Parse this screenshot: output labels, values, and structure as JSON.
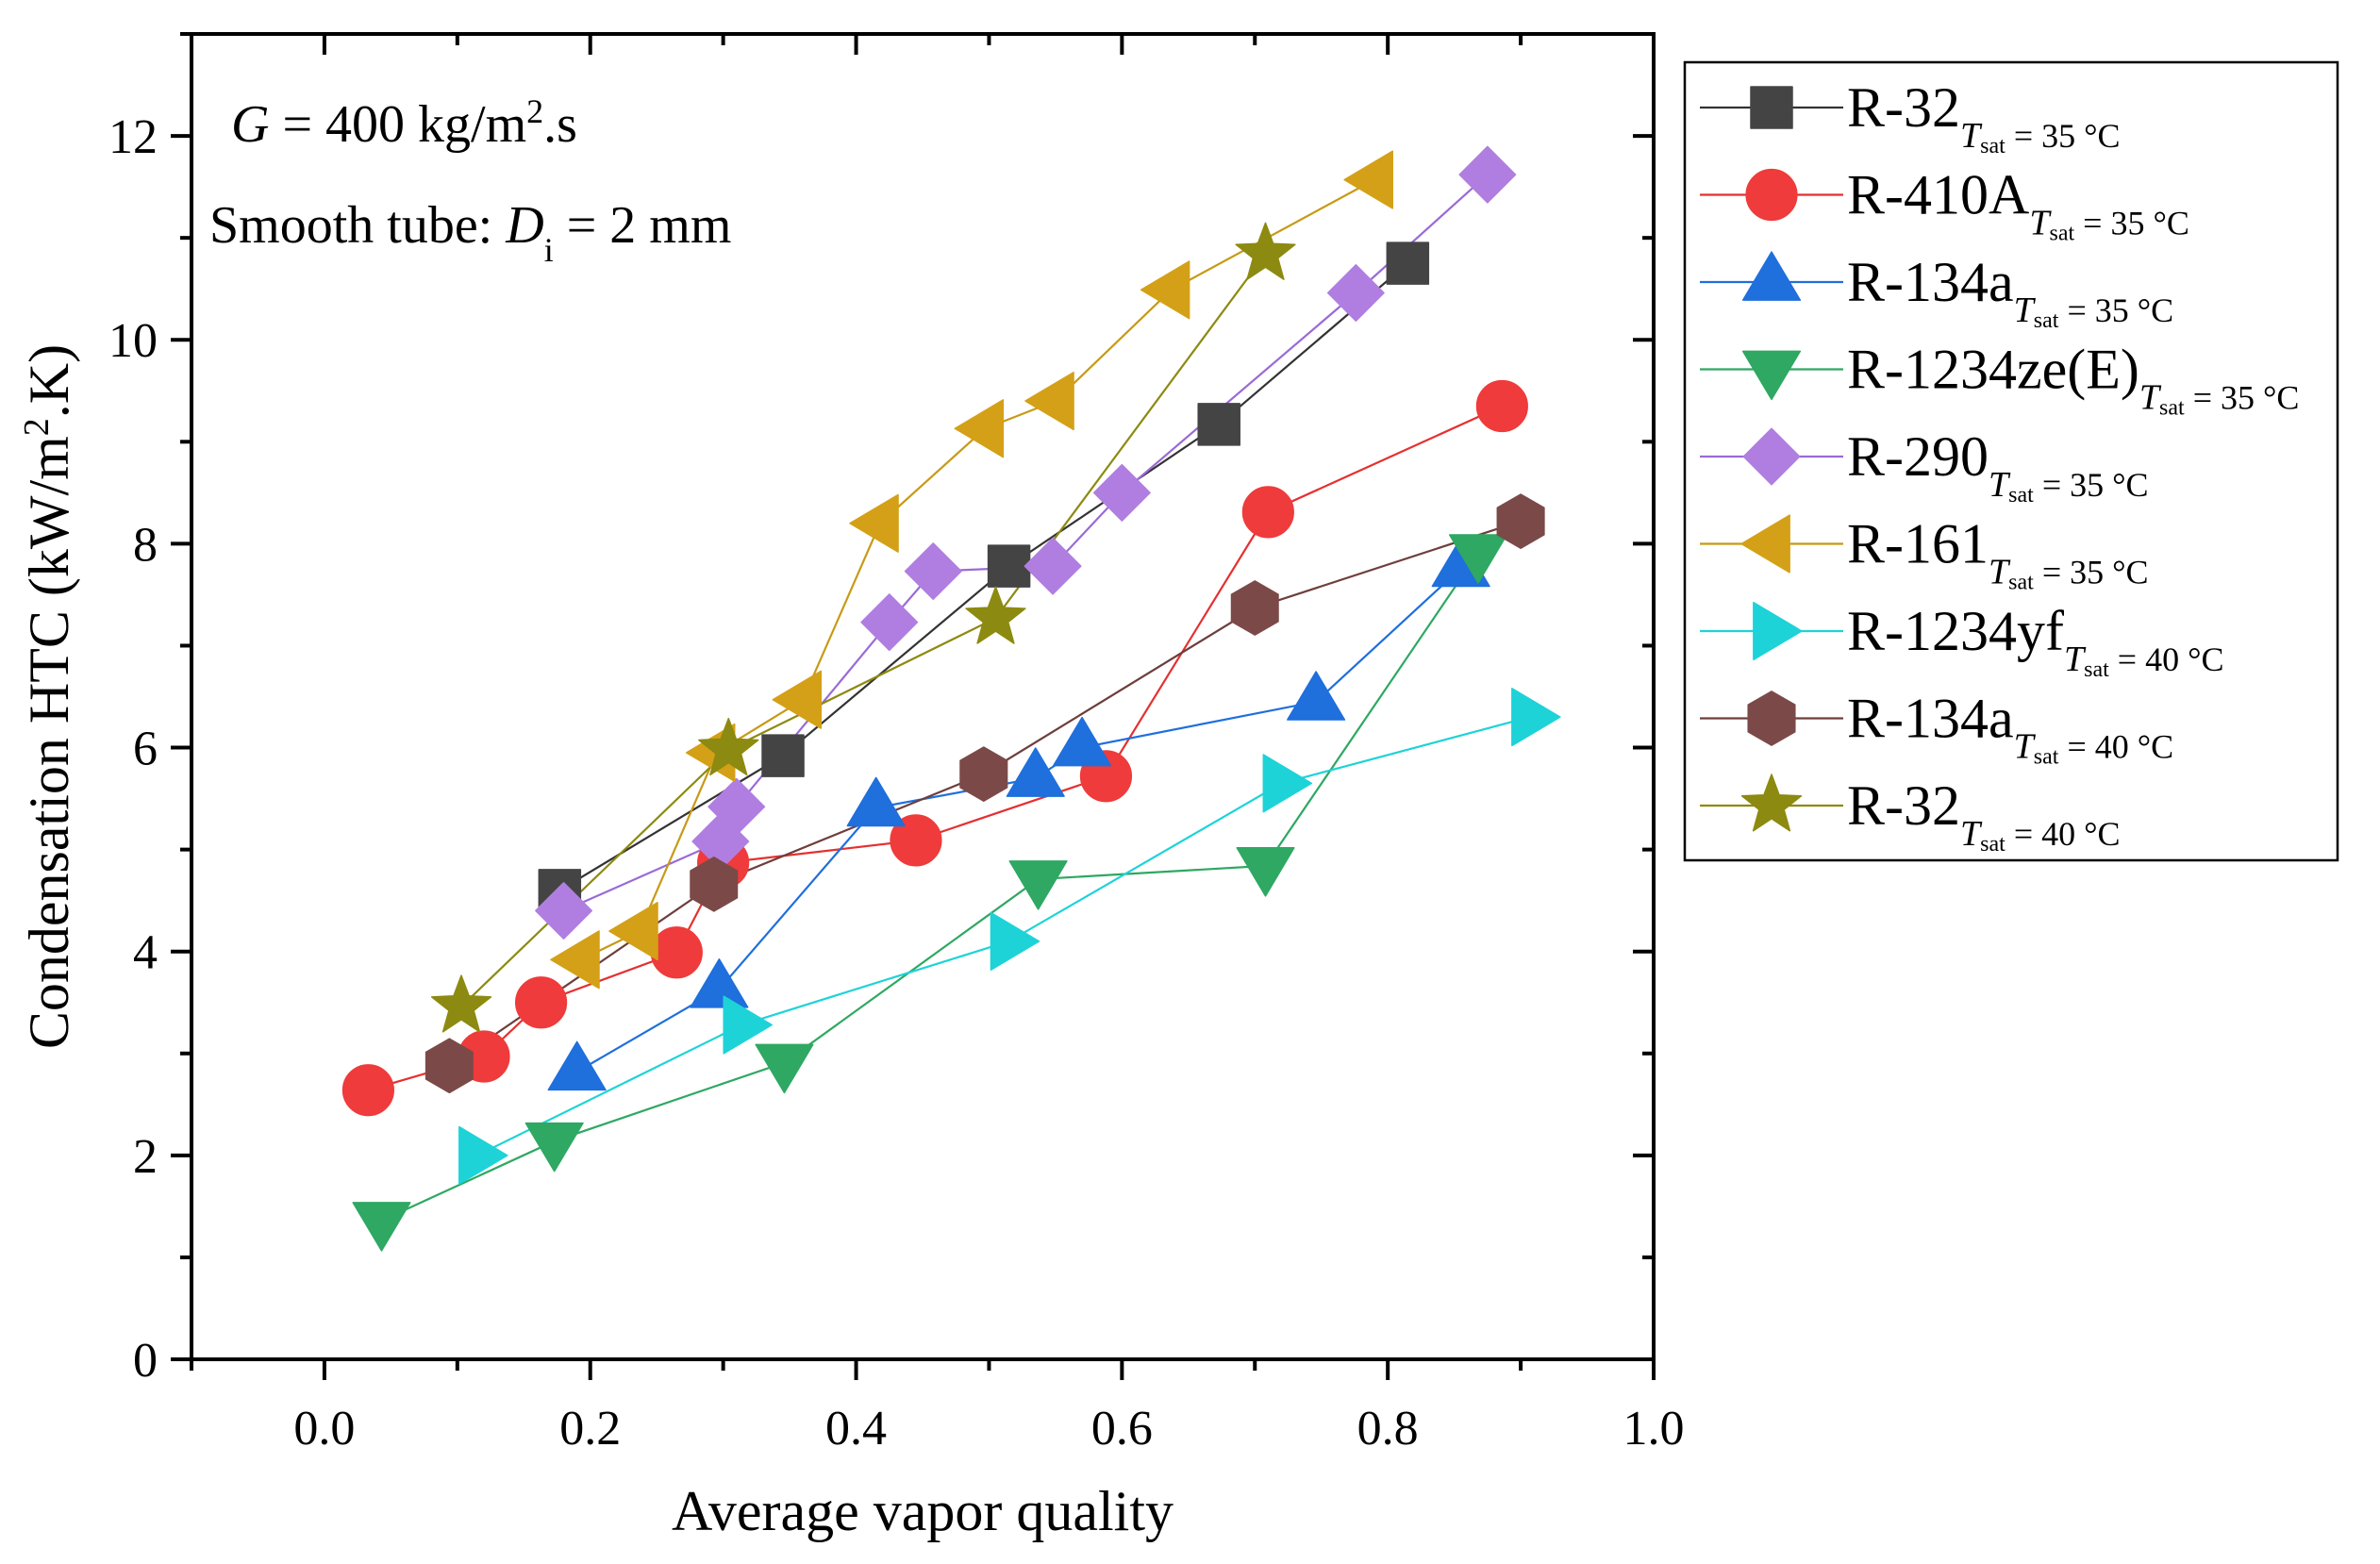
{
  "chart_data": {
    "type": "line",
    "xlabel": "Average vapor quality",
    "ylabel": "Condensation HTC (kW/m².K)",
    "xlim": [
      -0.1,
      1.0
    ],
    "ylim": [
      0,
      13
    ],
    "xticks": [
      0.0,
      0.2,
      0.4,
      0.6,
      0.8,
      1.0
    ],
    "xtick_labels": [
      "0.0",
      "0.2",
      "0.4",
      "0.6",
      "0.8",
      "1.0"
    ],
    "yticks": [
      0,
      2,
      4,
      6,
      8,
      10,
      12
    ],
    "ytick_labels": [
      "0",
      "2",
      "4",
      "6",
      "8",
      "10",
      "12"
    ],
    "grid": false,
    "legend_position": "outside-right",
    "annotations": [
      {
        "prefix": "G",
        "text": " = 400 kg/m",
        "sup": "2",
        "suffix": ".s"
      },
      {
        "prefix": "Smooth tube: ",
        "var": "D",
        "sub": "i",
        "suffix": " = 2 mm"
      }
    ],
    "series": [
      {
        "name": "R-32",
        "subscript": "T",
        "subscript_rest": "sat",
        "condition": " = 35 °C",
        "marker": "square",
        "color": "#444444",
        "line_color": "#333333",
        "x": [
          0.177,
          0.345,
          0.515,
          0.673,
          0.815
        ],
        "y": [
          4.6,
          5.92,
          7.78,
          9.17,
          10.75
        ]
      },
      {
        "name": "R-410A",
        "subscript": "T",
        "subscript_rest": "sat",
        "condition": " = 35 °C",
        "marker": "circle",
        "color": "#ef3b3b",
        "line_color": "#e53030",
        "x": [
          0.033,
          0.12,
          0.163,
          0.265,
          0.3,
          0.445,
          0.588,
          0.71,
          0.886
        ],
        "y": [
          2.64,
          2.97,
          3.5,
          3.99,
          4.87,
          5.09,
          5.72,
          8.31,
          9.35
        ]
      },
      {
        "name": "R-134a",
        "subscript": "T",
        "subscript_rest": "sat",
        "condition": " = 35 °C",
        "marker": "triangle-up",
        "color": "#1f6fdc",
        "line_color": "#1f6fdc",
        "x": [
          0.19,
          0.297,
          0.415,
          0.535,
          0.57,
          0.746,
          0.855
        ],
        "y": [
          2.82,
          3.63,
          5.41,
          5.7,
          6.0,
          6.45,
          7.76
        ]
      },
      {
        "name": "R-1234ze(E)",
        "subscript": "T",
        "subscript_rest": "sat",
        "condition": " = 35 °C",
        "marker": "triangle-down",
        "color": "#2ea862",
        "line_color": "#2ea862",
        "x": [
          0.043,
          0.173,
          0.346,
          0.537,
          0.708,
          0.868
        ],
        "y": [
          1.36,
          2.14,
          2.91,
          4.71,
          4.84,
          7.91
        ]
      },
      {
        "name": "R-290",
        "subscript": "T",
        "subscript_rest": "sat",
        "condition": " = 35 °C",
        "marker": "diamond",
        "color": "#b07ee0",
        "line_color": "#9a6ad6",
        "x": [
          0.18,
          0.298,
          0.31,
          0.425,
          0.458,
          0.548,
          0.6,
          0.776,
          0.875
        ],
        "y": [
          4.4,
          5.08,
          5.42,
          7.23,
          7.73,
          7.78,
          8.5,
          10.46,
          11.62
        ]
      },
      {
        "name": "R-161",
        "subscript": "T",
        "subscript_rest": "sat",
        "condition": " = 35 °C",
        "marker": "triangle-left",
        "color": "#d4a017",
        "line_color": "#c79a16",
        "x": [
          0.193,
          0.237,
          0.295,
          0.36,
          0.418,
          0.497,
          0.55,
          0.637,
          0.79
        ],
        "y": [
          3.92,
          4.2,
          5.95,
          6.47,
          8.2,
          9.13,
          9.4,
          10.49,
          11.57
        ]
      },
      {
        "name": "R-1234yf",
        "subscript": "T",
        "subscript_rest": "sat",
        "condition": " = 40 °C",
        "marker": "triangle-right",
        "color": "#1dd3d8",
        "line_color": "#1dd3d8",
        "x": [
          0.115,
          0.314,
          0.515,
          0.72,
          0.907
        ],
        "y": [
          2.0,
          3.28,
          4.1,
          5.65,
          6.3
        ]
      },
      {
        "name": "R-134a",
        "subscript": "T",
        "subscript_rest": "sat",
        "condition": " = 40 °C",
        "marker": "hexagon",
        "color": "#7b4a48",
        "line_color": "#6e3e3c",
        "x": [
          0.094,
          0.293,
          0.496,
          0.7,
          0.9
        ],
        "y": [
          2.88,
          4.66,
          5.74,
          7.37,
          8.22
        ]
      },
      {
        "name": "R-32",
        "subscript": "T",
        "subscript_rest": "sat",
        "condition": " = 40 °C",
        "marker": "star",
        "color": "#8c8a10",
        "line_color": "#8c8a10",
        "x": [
          0.103,
          0.304,
          0.505,
          0.708
        ],
        "y": [
          3.46,
          5.98,
          7.27,
          10.84
        ]
      }
    ]
  }
}
